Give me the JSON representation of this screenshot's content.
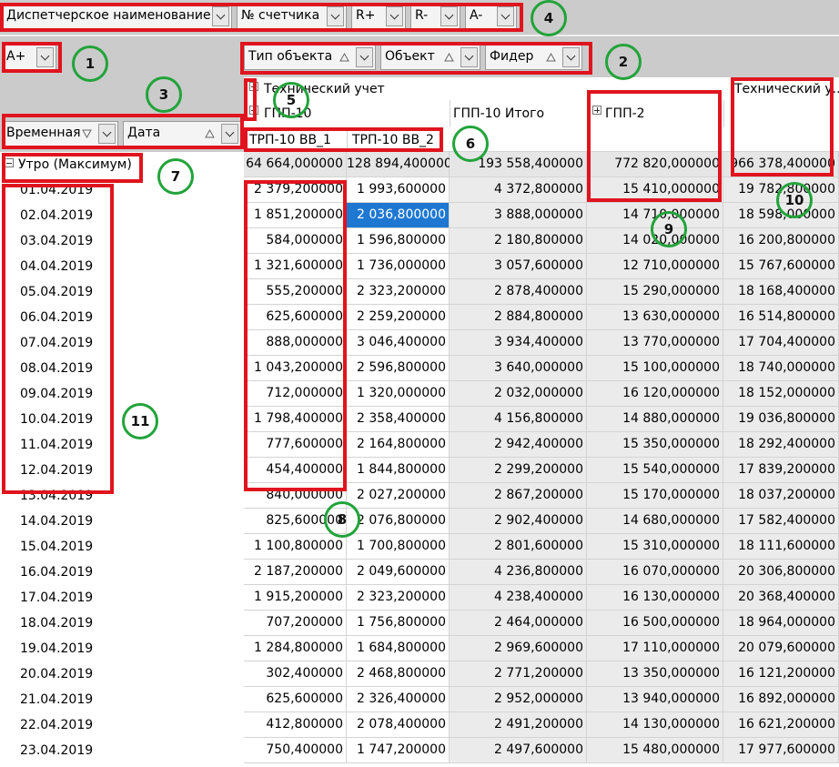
{
  "filter_fields": [
    "Диспетчерское наименование",
    "№ счетчика",
    "R+",
    "R-",
    "A-"
  ],
  "data_field": "A+",
  "column_fields": [
    "Тип объекта",
    "Объект",
    "Фидер"
  ],
  "row_fields": [
    "Временная",
    "Дата"
  ],
  "column_headers": {
    "group": "Технический учет",
    "group_total": "Технический у...",
    "object": "ГПП-10",
    "object_total": "ГПП-10 Итого",
    "object_2": "ГПП-2",
    "feeders": [
      "ТРП-10 ВВ_1",
      "ТРП-10 ВВ_2"
    ]
  },
  "row_group": "Утро (Максимум)",
  "group_totals": [
    "64 664,000000",
    "128 894,400000",
    "193 558,400000",
    "772 820,000000",
    "966 378,400000"
  ],
  "rows": [
    {
      "date": "01.04.2019",
      "values": [
        "2 379,200000",
        "1 993,600000",
        "4 372,800000",
        "15 410,000000",
        "19 782,800000"
      ]
    },
    {
      "date": "02.04.2019",
      "values": [
        "1 851,200000",
        "2 036,800000",
        "3 888,000000",
        "14 710,000000",
        "18 598,000000"
      ]
    },
    {
      "date": "03.04.2019",
      "values": [
        "584,000000",
        "1 596,800000",
        "2 180,800000",
        "14 020,000000",
        "16 200,800000"
      ]
    },
    {
      "date": "04.04.2019",
      "values": [
        "1 321,600000",
        "1 736,000000",
        "3 057,600000",
        "12 710,000000",
        "15 767,600000"
      ]
    },
    {
      "date": "05.04.2019",
      "values": [
        "555,200000",
        "2 323,200000",
        "2 878,400000",
        "15 290,000000",
        "18 168,400000"
      ]
    },
    {
      "date": "06.04.2019",
      "values": [
        "625,600000",
        "2 259,200000",
        "2 884,800000",
        "13 630,000000",
        "16 514,800000"
      ]
    },
    {
      "date": "07.04.2019",
      "values": [
        "888,000000",
        "3 046,400000",
        "3 934,400000",
        "13 770,000000",
        "17 704,400000"
      ]
    },
    {
      "date": "08.04.2019",
      "values": [
        "1 043,200000",
        "2 596,800000",
        "3 640,000000",
        "15 100,000000",
        "18 740,000000"
      ]
    },
    {
      "date": "09.04.2019",
      "values": [
        "712,000000",
        "1 320,000000",
        "2 032,000000",
        "16 120,000000",
        "18 152,000000"
      ]
    },
    {
      "date": "10.04.2019",
      "values": [
        "1 798,400000",
        "2 358,400000",
        "4 156,800000",
        "14 880,000000",
        "19 036,800000"
      ]
    },
    {
      "date": "11.04.2019",
      "values": [
        "777,600000",
        "2 164,800000",
        "2 942,400000",
        "15 350,000000",
        "18 292,400000"
      ]
    },
    {
      "date": "12.04.2019",
      "values": [
        "454,400000",
        "1 844,800000",
        "2 299,200000",
        "15 540,000000",
        "17 839,200000"
      ]
    },
    {
      "date": "13.04.2019",
      "values": [
        "840,000000",
        "2 027,200000",
        "2 867,200000",
        "15 170,000000",
        "18 037,200000"
      ]
    },
    {
      "date": "14.04.2019",
      "values": [
        "825,600000",
        "2 076,800000",
        "2 902,400000",
        "14 680,000000",
        "17 582,400000"
      ]
    },
    {
      "date": "15.04.2019",
      "values": [
        "1 100,800000",
        "1 700,800000",
        "2 801,600000",
        "15 310,000000",
        "18 111,600000"
      ]
    },
    {
      "date": "16.04.2019",
      "values": [
        "2 187,200000",
        "2 049,600000",
        "4 236,800000",
        "16 070,000000",
        "20 306,800000"
      ]
    },
    {
      "date": "17.04.2019",
      "values": [
        "1 915,200000",
        "2 323,200000",
        "4 238,400000",
        "16 130,000000",
        "20 368,400000"
      ]
    },
    {
      "date": "18.04.2019",
      "values": [
        "707,200000",
        "1 756,800000",
        "2 464,000000",
        "16 500,000000",
        "18 964,000000"
      ]
    },
    {
      "date": "19.04.2019",
      "values": [
        "1 284,800000",
        "1 684,800000",
        "2 969,600000",
        "17 110,000000",
        "20 079,600000"
      ]
    },
    {
      "date": "20.04.2019",
      "values": [
        "302,400000",
        "2 468,800000",
        "2 771,200000",
        "13 350,000000",
        "16 121,200000"
      ]
    },
    {
      "date": "21.04.2019",
      "values": [
        "625,600000",
        "2 326,400000",
        "2 952,000000",
        "13 940,000000",
        "16 892,000000"
      ]
    },
    {
      "date": "22.04.2019",
      "values": [
        "412,800000",
        "2 078,400000",
        "2 491,200000",
        "14 130,000000",
        "16 621,200000"
      ]
    },
    {
      "date": "23.04.2019",
      "values": [
        "750,400000",
        "1 747,200000",
        "2 497,600000",
        "15 480,000000",
        "17 977,600000"
      ]
    }
  ],
  "annotations": [
    "1",
    "2",
    "3",
    "4",
    "5",
    "6",
    "7",
    "8",
    "9",
    "10",
    "11"
  ]
}
